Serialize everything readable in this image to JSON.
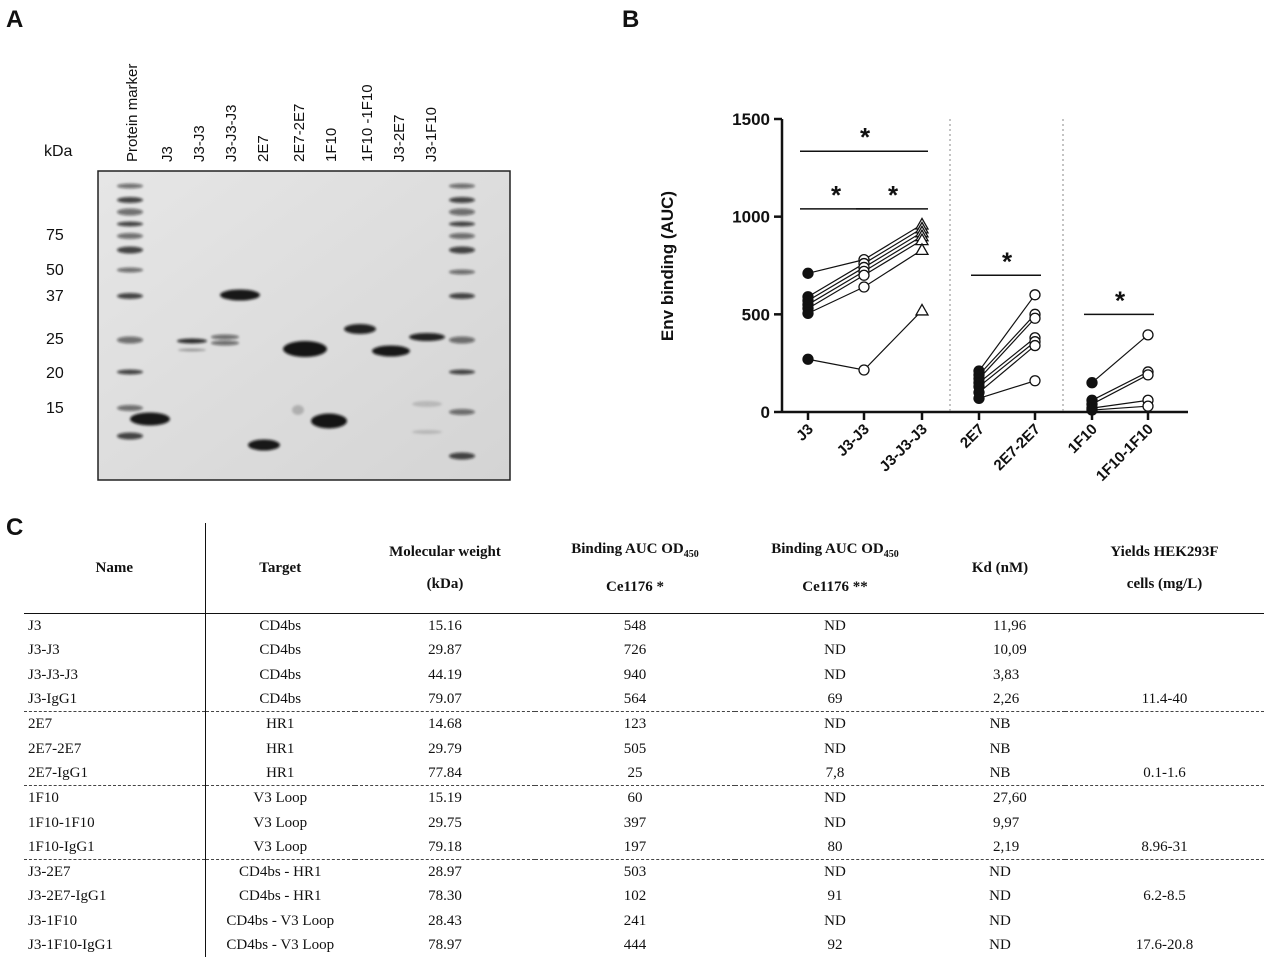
{
  "panels": {
    "a": "A",
    "b": "B",
    "c": "C"
  },
  "gel": {
    "unit_label": "kDa",
    "lanes": [
      "Protein marker",
      "J3",
      "J3-J3",
      "J3-J3-J3",
      "2E7",
      "2E7-2E7",
      "1F10",
      "1F10 -1F10",
      "J3-2E7",
      "J3-1F10"
    ],
    "markers": [
      "75",
      "50",
      "37",
      "25",
      "20",
      "15"
    ]
  },
  "chart_data": {
    "type": "scatter",
    "ylabel": "Env binding (AUC)",
    "ylim": [
      0,
      1500
    ],
    "yticks": [
      0,
      500,
      1000,
      1500
    ],
    "categories": [
      "J3",
      "J3-J3",
      "J3-J3-J3",
      "2E7",
      "2E7-2E7",
      "1F10",
      "1F10-1F10"
    ],
    "groups": [
      {
        "categories": [
          "J3",
          "J3-J3",
          "J3-J3-J3"
        ],
        "markers": [
          "filled-circle",
          "open-circle",
          "open-triangle"
        ],
        "paired": [
          [
            710,
            780,
            960
          ],
          [
            590,
            760,
            940
          ],
          [
            570,
            740,
            920
          ],
          [
            550,
            720,
            900
          ],
          [
            530,
            700,
            880
          ],
          [
            505,
            640,
            830
          ],
          [
            270,
            215,
            520
          ]
        ]
      },
      {
        "categories": [
          "2E7",
          "2E7-2E7"
        ],
        "markers": [
          "filled-circle",
          "open-circle"
        ],
        "paired": [
          [
            210,
            600
          ],
          [
            190,
            500
          ],
          [
            170,
            480
          ],
          [
            150,
            380
          ],
          [
            130,
            360
          ],
          [
            100,
            340
          ],
          [
            70,
            160
          ]
        ]
      },
      {
        "categories": [
          "1F10",
          "1F10-1F10"
        ],
        "markers": [
          "filled-circle",
          "open-circle"
        ],
        "paired": [
          [
            150,
            395
          ],
          [
            60,
            205
          ],
          [
            40,
            190
          ],
          [
            20,
            60
          ],
          [
            10,
            30
          ]
        ]
      }
    ],
    "significance": [
      {
        "from": "J3",
        "to": "J3-J3-J3",
        "y": 1335,
        "label": "*"
      },
      {
        "from": "J3",
        "to": "J3-J3",
        "y": 1040,
        "label": "*"
      },
      {
        "from": "J3-J3",
        "to": "J3-J3-J3",
        "y": 1040,
        "label": "*"
      },
      {
        "from": "2E7",
        "to": "2E7-2E7",
        "y": 700,
        "label": "*"
      },
      {
        "from": "1F10",
        "to": "1F10-1F10",
        "y": 500,
        "label": "*"
      }
    ]
  },
  "table": {
    "headers": {
      "name": "Name",
      "target": "Target",
      "mw_line1": "Molecular weight",
      "mw_line2": "(kDa)",
      "b1_line1": "Binding AUC OD",
      "b1_sub": "450",
      "b1_line2": "Ce1176 *",
      "b2_line1": "Binding  AUC OD",
      "b2_sub": "450",
      "b2_line2": "Ce1176 **",
      "kd": "Kd (nM)",
      "yield_line1": "Yields HEK293F",
      "yield_line2": "cells (mg/L)"
    },
    "rows": [
      {
        "name": "J3",
        "target": "CD4bs",
        "mw": "15.16",
        "b1": "548",
        "b2": "ND",
        "kd": "11,96",
        "yield": ""
      },
      {
        "name": "J3-J3",
        "target": "CD4bs",
        "mw": "29.87",
        "b1": "726",
        "b2": "ND",
        "kd": "10,09",
        "yield": ""
      },
      {
        "name": "J3-J3-J3",
        "target": "CD4bs",
        "mw": "44.19",
        "b1": "940",
        "b2": "ND",
        "kd": "3,83",
        "yield": ""
      },
      {
        "name": "J3-IgG1",
        "target": "CD4bs",
        "mw": "79.07",
        "b1": "564",
        "b2": "69",
        "kd": "2,26",
        "yield": "11.4-40"
      },
      {
        "name": "2E7",
        "target": "HR1",
        "mw": "14.68",
        "b1": "123",
        "b2": "ND",
        "kd": "NB",
        "yield": ""
      },
      {
        "name": "2E7-2E7",
        "target": "HR1",
        "mw": "29.79",
        "b1": "505",
        "b2": "ND",
        "kd": "NB",
        "yield": ""
      },
      {
        "name": "2E7-IgG1",
        "target": "HR1",
        "mw": "77.84",
        "b1": "25",
        "b2": "7,8",
        "kd": "NB",
        "yield": "0.1-1.6"
      },
      {
        "name": "1F10",
        "target": "V3 Loop",
        "mw": "15.19",
        "b1": "60",
        "b2": "ND",
        "kd": "27,60",
        "yield": ""
      },
      {
        "name": "1F10-1F10",
        "target": "V3 Loop",
        "mw": "29.75",
        "b1": "397",
        "b2": "ND",
        "kd": "9,97",
        "yield": ""
      },
      {
        "name": "1F10-IgG1",
        "target": "V3 Loop",
        "mw": "79.18",
        "b1": "197",
        "b2": "80",
        "kd": "2,19",
        "yield": "8.96-31"
      },
      {
        "name": "J3-2E7",
        "target": "CD4bs - HR1",
        "mw": "28.97",
        "b1": "503",
        "b2": "ND",
        "kd": "ND",
        "yield": ""
      },
      {
        "name": "J3-2E7-IgG1",
        "target": "CD4bs - HR1",
        "mw": "78.30",
        "b1": "102",
        "b2": "91",
        "kd": "ND",
        "yield": "6.2-8.5"
      },
      {
        "name": "J3-1F10",
        "target": "CD4bs - V3 Loop",
        "mw": "28.43",
        "b1": "241",
        "b2": "ND",
        "kd": "ND",
        "yield": ""
      },
      {
        "name": "J3-1F10-IgG1",
        "target": "CD4bs - V3 Loop",
        "mw": "78.97",
        "b1": "444",
        "b2": "92",
        "kd": "ND",
        "yield": "17.6-20.8"
      }
    ]
  }
}
